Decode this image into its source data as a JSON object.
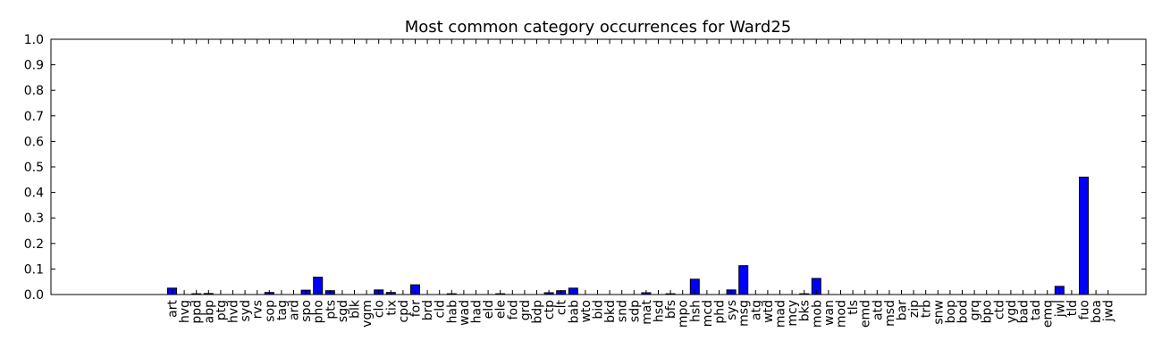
{
  "chart_data": {
    "type": "bar",
    "title": "Most common category occurrences for Ward25",
    "xlabel": "",
    "ylabel": "",
    "ylim": [
      0,
      1.0
    ],
    "yticks": [
      "0.0",
      "0.1",
      "0.2",
      "0.3",
      "0.4",
      "0.5",
      "0.6",
      "0.7",
      "0.8",
      "0.9",
      "1.0"
    ],
    "bar_color": "#0000ff",
    "grid": false,
    "categories": [
      "art",
      "hvg",
      "ppd",
      "abp",
      "ptg",
      "hvd",
      "syd",
      "rvs",
      "sop",
      "tag",
      "ard",
      "spo",
      "pho",
      "pts",
      "sgd",
      "blk",
      "vgm",
      "clo",
      "tix",
      "cpd",
      "for",
      "brd",
      "cld",
      "hab",
      "wad",
      "had",
      "eld",
      "ele",
      "fod",
      "grd",
      "bdp",
      "ctp",
      "clt",
      "bab",
      "wto",
      "bid",
      "bkd",
      "snd",
      "sdp",
      "mat",
      "hsd",
      "bfs",
      "mpo",
      "hsh",
      "mcd",
      "phd",
      "sys",
      "msg",
      "atg",
      "wtd",
      "mad",
      "mcy",
      "bks",
      "mob",
      "wan",
      "mod",
      "tls",
      "emd",
      "atd",
      "msd",
      "bar",
      "zip",
      "trb",
      "snw",
      "bop",
      "bod",
      "grq",
      "bpo",
      "ctd",
      "ygd",
      "bad",
      "tad",
      "emq",
      "jwl",
      "tld",
      "fuo",
      "boa",
      "jwd"
    ],
    "values": [
      0.025,
      0,
      0.003,
      0.004,
      0,
      0,
      0,
      0,
      0.008,
      0,
      0,
      0.017,
      0.068,
      0.015,
      0,
      0,
      0,
      0.018,
      0.008,
      0,
      0.038,
      0,
      0,
      0.003,
      0,
      0,
      0,
      0.003,
      0,
      0,
      0,
      0.007,
      0.015,
      0.025,
      0,
      0,
      0,
      0,
      0,
      0.007,
      0,
      0.003,
      0,
      0.06,
      0,
      0,
      0.018,
      0.113,
      0,
      0,
      0,
      0,
      0.003,
      0.063,
      0,
      0,
      0,
      0,
      0,
      0,
      0,
      0,
      0,
      0,
      0,
      0,
      0,
      0,
      0,
      0,
      0,
      0,
      0,
      0.032,
      0,
      0.46,
      0,
      0
    ]
  }
}
